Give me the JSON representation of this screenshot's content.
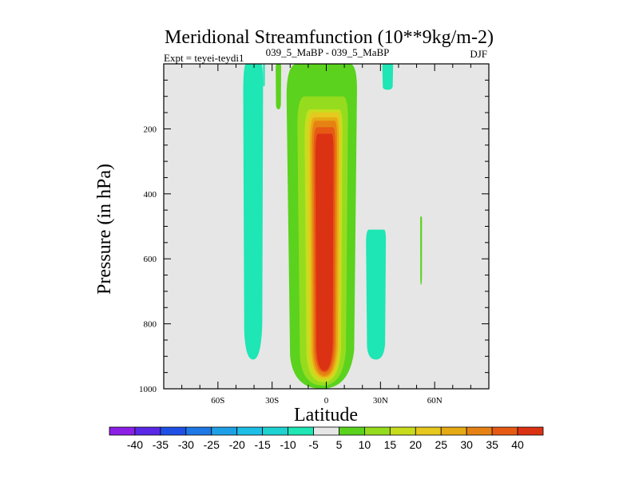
{
  "chart_data": {
    "type": "heatmap",
    "title": "Meridional Streamfunction (10**9kg/m-2)",
    "subtitle_left": "Expt = teyei-teydi1",
    "subtitle_center": "039_5_MaBP - 039_5_MaBP",
    "subtitle_right": "DJF",
    "xlabel": "Latitude",
    "ylabel": "Pressure (in hPa)",
    "xlim": [
      -90,
      90
    ],
    "ylim": [
      1000,
      0
    ],
    "x_ticks": [
      {
        "value": -60,
        "label": "60S"
      },
      {
        "value": -30,
        "label": "30S"
      },
      {
        "value": 0,
        "label": "0"
      },
      {
        "value": 30,
        "label": "30N"
      },
      {
        "value": 60,
        "label": "60N"
      }
    ],
    "y_ticks": [
      {
        "value": 200,
        "label": "200"
      },
      {
        "value": 400,
        "label": "400"
      },
      {
        "value": 600,
        "label": "600"
      },
      {
        "value": 800,
        "label": "800"
      },
      {
        "value": 1000,
        "label": "1000"
      }
    ],
    "background_color": "#e6e6e6",
    "colorbar": {
      "labels": [
        "-40",
        "-35",
        "-30",
        "-25",
        "-20",
        "-15",
        "-10",
        "-5",
        "5",
        "10",
        "15",
        "20",
        "25",
        "30",
        "35",
        "40"
      ],
      "colors": [
        "#8c1ee6",
        "#5a28e6",
        "#1e50e6",
        "#1e78e6",
        "#1ea0e6",
        "#1ebee6",
        "#1ed2d2",
        "#1ee6b4",
        "#e6e6e6",
        "#5ad21e",
        "#96dc1e",
        "#c8dc1e",
        "#e6c81e",
        "#e6aa14",
        "#e68214",
        "#e65a14",
        "#dc3214"
      ]
    },
    "regions": [
      {
        "name": "negative-sh-high-lat",
        "level": -7,
        "lat": [
          -46,
          -35
        ],
        "p": [
          0,
          910
        ]
      },
      {
        "name": "negative-sh-upper-small",
        "level": -7,
        "lat": [
          -35,
          -34
        ],
        "p": [
          0,
          70
        ]
      },
      {
        "name": "positive-sh-upper-narrow",
        "level": 5,
        "lat": [
          -28,
          -25
        ],
        "p": [
          0,
          140
        ]
      },
      {
        "name": "positive-main-cell",
        "level": 5,
        "lat": [
          -22,
          17
        ],
        "p": [
          0,
          1000
        ]
      },
      {
        "name": "main-cell-10",
        "level": 10,
        "lat": [
          -16,
          12
        ],
        "p": [
          100,
          990
        ]
      },
      {
        "name": "main-cell-15",
        "level": 15,
        "lat": [
          -12,
          9
        ],
        "p": [
          140,
          980
        ]
      },
      {
        "name": "main-cell-20",
        "level": 20,
        "lat": [
          -10,
          8
        ],
        "p": [
          150,
          970
        ]
      },
      {
        "name": "main-cell-25",
        "level": 25,
        "lat": [
          -9,
          7
        ],
        "p": [
          165,
          965
        ]
      },
      {
        "name": "main-cell-30",
        "level": 30,
        "lat": [
          -8,
          6
        ],
        "p": [
          175,
          960
        ]
      },
      {
        "name": "main-cell-35",
        "level": 35,
        "lat": [
          -7,
          5
        ],
        "p": [
          195,
          950
        ]
      },
      {
        "name": "main-cell-40",
        "level": 40,
        "lat": [
          -6,
          4
        ],
        "p": [
          215,
          945
        ]
      },
      {
        "name": "negative-nh-subtropics",
        "level": -7,
        "lat": [
          22,
          33
        ],
        "p": [
          510,
          910
        ]
      },
      {
        "name": "negative-nh-upper",
        "level": -7,
        "lat": [
          31,
          37
        ],
        "p": [
          0,
          80
        ]
      },
      {
        "name": "positive-nh-midlat",
        "level": 5,
        "lat": [
          52,
          53
        ],
        "p": [
          470,
          680
        ]
      }
    ]
  }
}
